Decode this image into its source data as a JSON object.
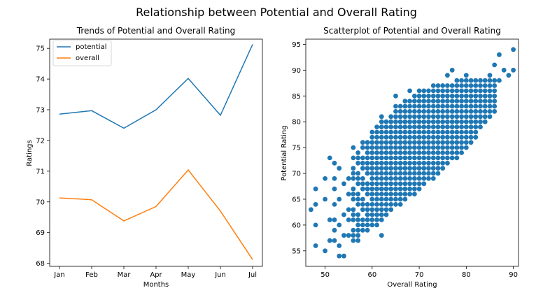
{
  "suptitle": "Relationship between Potential and Overall Rating",
  "colors": {
    "potential": "#1f77b4",
    "overall": "#ff7f0e",
    "scatter": "#1f77b4"
  },
  "chart_data": [
    {
      "type": "line",
      "title": "Trends of Potential and Overall Rating",
      "xlabel": "Months",
      "ylabel": "Ratings",
      "categories": [
        "Jan",
        "Feb",
        "Mar",
        "Apr",
        "May",
        "Jun",
        "Jul"
      ],
      "ylim": [
        67.9,
        75.3
      ],
      "yticks": [
        68,
        69,
        70,
        71,
        72,
        73,
        74,
        75
      ],
      "legend_position": "top-left",
      "series": [
        {
          "name": "potential",
          "values": [
            72.86,
            72.97,
            72.4,
            73.0,
            74.02,
            72.82,
            75.13
          ]
        },
        {
          "name": "overall",
          "values": [
            70.13,
            70.07,
            69.38,
            69.85,
            71.04,
            69.7,
            68.12
          ]
        }
      ]
    },
    {
      "type": "scatter",
      "title": "Scatterplot of Potential and Overall Rating",
      "xlabel": "Overall Rating",
      "ylabel": "Potential Rating",
      "xlim": [
        45.9,
        91.1
      ],
      "ylim": [
        52.0,
        96.0
      ],
      "xticks": [
        50,
        60,
        70,
        80,
        90
      ],
      "yticks": [
        55,
        60,
        65,
        70,
        75,
        80,
        85,
        90,
        95
      ],
      "points": [
        [
          47,
          63
        ],
        [
          48,
          67
        ],
        [
          48,
          64
        ],
        [
          48,
          60
        ],
        [
          48,
          56
        ],
        [
          50,
          55
        ],
        [
          50,
          65
        ],
        [
          50,
          69
        ],
        [
          51,
          73
        ],
        [
          51,
          61
        ],
        [
          51,
          57
        ],
        [
          52,
          72
        ],
        [
          52,
          69
        ],
        [
          52,
          67
        ],
        [
          52,
          64
        ],
        [
          52,
          61
        ],
        [
          52,
          59
        ],
        [
          52,
          57
        ],
        [
          53,
          71
        ],
        [
          53,
          65
        ],
        [
          53,
          60
        ],
        [
          53,
          56
        ],
        [
          53,
          54
        ],
        [
          54,
          68
        ],
        [
          54,
          62
        ],
        [
          54,
          58
        ],
        [
          54,
          54
        ],
        [
          55,
          69
        ],
        [
          55,
          66
        ],
        [
          55,
          63
        ],
        [
          55,
          61
        ],
        [
          55,
          58
        ],
        [
          56,
          75
        ],
        [
          56,
          70
        ],
        [
          56,
          66
        ],
        [
          56,
          62
        ],
        [
          56,
          57
        ],
        [
          57,
          68
        ],
        [
          57,
          59
        ],
        [
          58,
          72
        ],
        [
          58,
          63
        ],
        [
          58,
          59
        ],
        [
          59,
          73
        ],
        [
          59,
          61
        ],
        [
          60,
          68
        ],
        [
          60,
          61
        ],
        [
          62,
          81
        ],
        [
          63,
          76
        ],
        [
          64,
          75
        ],
        [
          65,
          85
        ],
        [
          65,
          83
        ],
        [
          67,
          84
        ],
        [
          68,
          86
        ],
        [
          69,
          85
        ],
        [
          70,
          85
        ],
        [
          72,
          86
        ],
        [
          73,
          85
        ],
        [
          74,
          87
        ],
        [
          75,
          87
        ],
        [
          76,
          89
        ],
        [
          77,
          90
        ],
        [
          78,
          88
        ],
        [
          80,
          89
        ],
        [
          81,
          88
        ],
        [
          82,
          87
        ],
        [
          83,
          86
        ],
        [
          84,
          88
        ],
        [
          85,
          89
        ],
        [
          86,
          91
        ],
        [
          86,
          87
        ],
        [
          87,
          93
        ],
        [
          87,
          88
        ],
        [
          88,
          90
        ],
        [
          89,
          89
        ],
        [
          90,
          94
        ],
        [
          90,
          90
        ],
        [
          62,
          58
        ],
        [
          61,
          60
        ],
        [
          63,
          62
        ],
        [
          64,
          63
        ],
        [
          65,
          64
        ],
        [
          66,
          66
        ],
        [
          67,
          68
        ],
        [
          68,
          69
        ],
        [
          69,
          70
        ],
        [
          70,
          72
        ],
        [
          71,
          73
        ],
        [
          72,
          74
        ],
        [
          73,
          75
        ],
        [
          74,
          76
        ],
        [
          75,
          78
        ],
        [
          76,
          80
        ],
        [
          77,
          82
        ],
        [
          78,
          83
        ]
      ],
      "dense_region": {
        "x_range": [
          56,
          86
        ],
        "note_floor": [
          [
            56,
            56
          ],
          [
            60,
            60
          ],
          [
            70,
            67
          ],
          [
            80,
            75
          ],
          [
            86,
            82
          ]
        ],
        "note_ceiling": [
          [
            56,
            73
          ],
          [
            60,
            78
          ],
          [
            70,
            86
          ],
          [
            80,
            88
          ],
          [
            86,
            88
          ]
        ]
      }
    }
  ]
}
